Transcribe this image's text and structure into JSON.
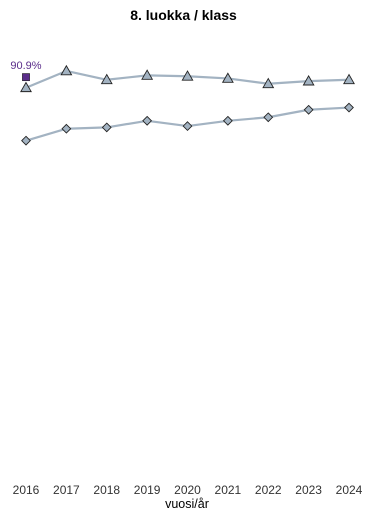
{
  "chart_data": {
    "type": "line",
    "title": "8. luokka / klass",
    "xlabel": "vuosi/år",
    "ylabel": "",
    "x": [
      "2016",
      "2017",
      "2018",
      "2019",
      "2020",
      "2021",
      "2022",
      "2023",
      "2024"
    ],
    "ylim": [
      0,
      100
    ],
    "grid": false,
    "series": [
      {
        "marker": "triangle",
        "color": "#a3b3c2",
        "marker_fill": "#a3b3c2",
        "values": [
          88.5,
          92.3,
          90.3,
          91.3,
          91.1,
          90.6,
          89.4,
          90.0,
          90.3
        ]
      },
      {
        "marker": "diamond",
        "color": "#a3b3c2",
        "marker_fill": "#a3b3c2",
        "values": [
          76.5,
          79.2,
          79.5,
          81.0,
          79.8,
          81.0,
          81.8,
          83.5,
          84.0
        ]
      }
    ],
    "highlight": {
      "x": "2016",
      "value": 90.9,
      "label": "90.9%",
      "marker": "square",
      "color": "#5a2d8a"
    }
  }
}
